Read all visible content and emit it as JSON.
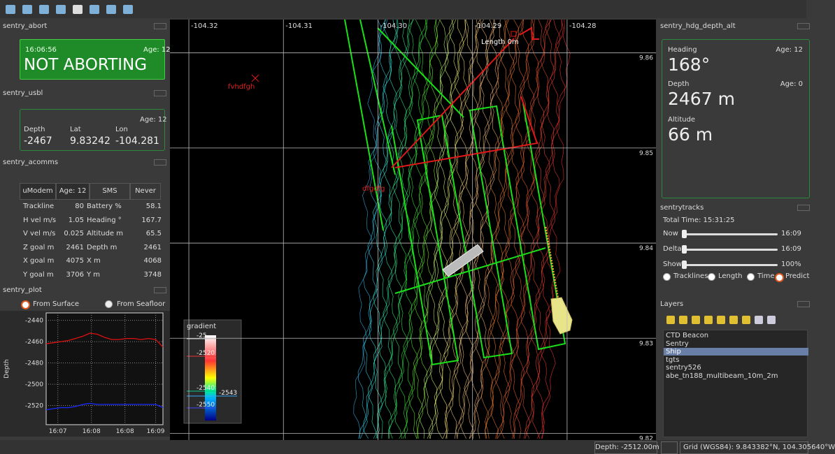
{
  "panels": {
    "abort": {
      "title": "sentry_abort",
      "time": "16:06:56",
      "age": "Age: 12",
      "status": "NOT ABORTING"
    },
    "usbl": {
      "title": "sentry_usbl",
      "age": "Age: 12",
      "headers": [
        "Depth",
        "Lat",
        "Lon"
      ],
      "values": [
        "-2467",
        "9.83242",
        "-104.281"
      ]
    },
    "acomms": {
      "title": "sentry_acomms",
      "tabs": [
        "uModem",
        "Age: 12",
        "SMS",
        "Never"
      ],
      "rows": [
        [
          "Trackline",
          "80",
          "Battery %",
          "58.1"
        ],
        [
          "H vel m/s",
          "1.05",
          "Heading °",
          "167.7"
        ],
        [
          "V vel m/s",
          "0.025",
          "Altitude m",
          "65.5"
        ],
        [
          "Z goal m",
          "2461",
          "Depth m",
          "2461"
        ],
        [
          "X goal m",
          "4075",
          "X m",
          "4068"
        ],
        [
          "Y goal m",
          "3706",
          "Y m",
          "3748"
        ]
      ]
    },
    "plot": {
      "title": "sentry_plot",
      "options": [
        "From Surface",
        "From Seafloor"
      ]
    },
    "hdg": {
      "title": "sentry_hdg_depth_alt",
      "items": [
        {
          "label": "Heading",
          "age": "Age: 12",
          "value": "168°"
        },
        {
          "label": "Depth",
          "age": "Age: 0",
          "value": "2467 m"
        },
        {
          "label": "Altitude",
          "value": "66 m"
        }
      ]
    },
    "tracks": {
      "title": "sentrytracks",
      "total": "Total Time: 15:31:25",
      "sliders": [
        {
          "label": "Now",
          "value": "16:09"
        },
        {
          "label": "Delta",
          "value": "16:09"
        },
        {
          "label": "Show",
          "value": "100%"
        }
      ],
      "options": [
        "Tracklines",
        "Length",
        "Time",
        "Predict"
      ]
    },
    "layers": {
      "title": "Layers",
      "items": [
        "CTD Beacon",
        "Sentry",
        "Ship",
        "tgts",
        "sentry526",
        "abe_tn188_multibeam_10m_2m"
      ],
      "selected": 2
    }
  },
  "map": {
    "xlim": [
      -104.322,
      -104.2706
    ],
    "ylim": [
      9.8193,
      9.8635
    ],
    "xticks": [
      -104.32,
      -104.31,
      {
        "value": -104.3,
        "label": "-104.30"
      },
      -104.29,
      -104.28
    ],
    "yticks": [
      9.82,
      9.83,
      9.84,
      9.85,
      9.86
    ],
    "labels": [
      "Length 0m",
      "fvhdfgh",
      "dfgdfg"
    ],
    "legend": {
      "title": "gradient",
      "labels": [
        "-25",
        "-2520",
        "-2540",
        "-2543",
        "-2550"
      ]
    }
  },
  "status": {
    "depth": "Depth: -2512.00m",
    "grid": "Grid (WGS84): 9.843382°N, 104.305640°W"
  },
  "chart_data": {
    "type": "line",
    "ylabel": "Depth",
    "xlim": [
      0,
      160
    ],
    "ylim": [
      -2538,
      -2433
    ],
    "xticks": [
      {
        "value": 16,
        "label": "16:07"
      },
      {
        "value": 62,
        "label": "16:08"
      },
      {
        "value": 108,
        "label": "16:08"
      },
      {
        "value": 150,
        "label": "16:09"
      }
    ],
    "yticks": [
      -2440,
      -2460,
      -2480,
      -2500,
      -2520
    ],
    "grid": true,
    "x": [
      0,
      10,
      20,
      30,
      40,
      50,
      60,
      70,
      80,
      90,
      100,
      110,
      120,
      130,
      140,
      150,
      160
    ],
    "series": [
      {
        "color": "#e01010",
        "values": [
          -2462,
          -2461,
          -2460,
          -2459,
          -2457,
          -2455,
          -2452,
          -2453,
          -2456,
          -2458,
          -2458,
          -2457,
          -2457,
          -2458,
          -2457,
          -2458,
          -2465
        ]
      },
      {
        "color": "#1a2aff",
        "values": [
          -2524,
          -2523,
          -2522,
          -2522,
          -2521,
          -2519,
          -2518,
          -2519,
          -2519,
          -2519,
          -2519,
          -2519,
          -2519,
          -2519,
          -2519,
          -2519,
          -2522
        ]
      }
    ]
  }
}
